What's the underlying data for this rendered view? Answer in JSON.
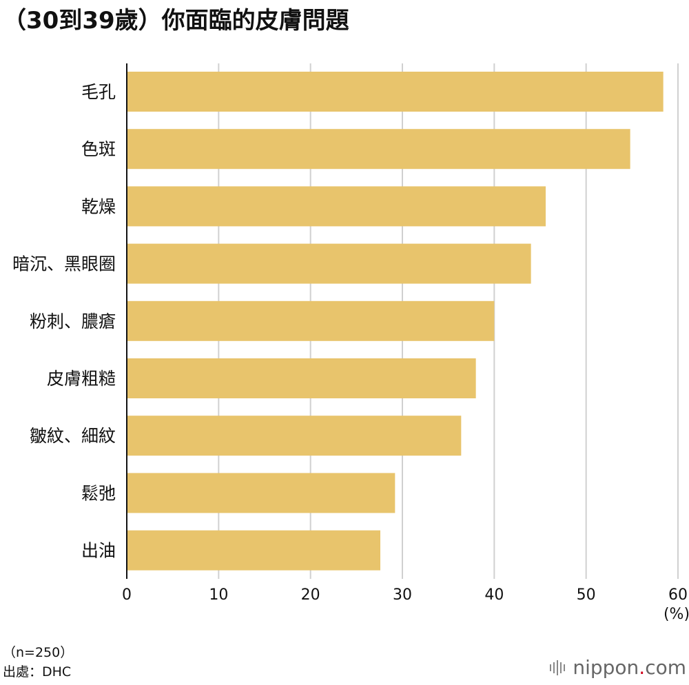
{
  "title": "（30到39歲）你面臨的皮膚問題",
  "chart_data": {
    "type": "bar",
    "orientation": "horizontal",
    "title": "（30到39歲）你面臨的皮膚問題",
    "categories": [
      "毛孔",
      "色斑",
      "乾燥",
      "暗沉、黑眼圈",
      "粉刺、膿瘡",
      "皮膚粗糙",
      "皺紋、細紋",
      "鬆弛",
      "出油"
    ],
    "series": [
      {
        "values": [
          58.4,
          54.8,
          45.6,
          44.0,
          40.0,
          38.0,
          36.4,
          29.2,
          27.6
        ]
      }
    ],
    "xlim": [
      0,
      60
    ],
    "xticks": [
      "0",
      "10",
      "20",
      "30",
      "40",
      "50",
      "60"
    ],
    "xunit": "(%)",
    "grid": true,
    "bar_color": "#e8c46c",
    "grid_color": "#d0d0d0"
  },
  "notes": {
    "sample": "（n=250）",
    "source": "出處：DHC"
  },
  "logo": {
    "text_main": "nippon",
    "text_dot": ".",
    "text_tail": "com",
    "dot_color": "#d0021b"
  }
}
